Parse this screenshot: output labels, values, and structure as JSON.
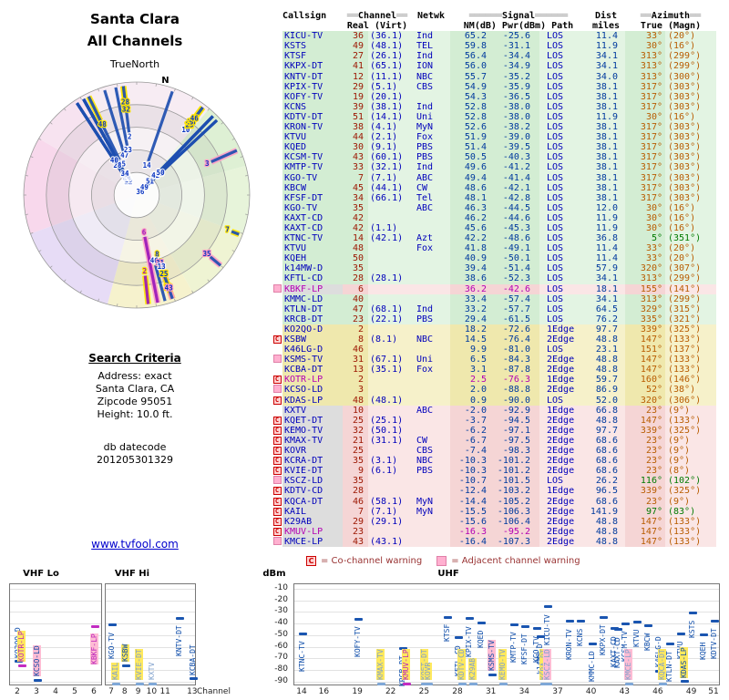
{
  "left": {
    "title1": "Santa Clara",
    "title2": "All Channels",
    "truenorth": "TrueNorth",
    "search_heading": "Search Criteria",
    "search_lines": [
      "Address: exact",
      "Santa Clara, CA",
      "Zipcode 95051",
      "Height: 10.0 ft."
    ],
    "db_label": "db datecode",
    "db_value": "201205301329",
    "link": "www.tvfool.com"
  },
  "header": {
    "callsign": "Callsign",
    "channel_group": {
      "pre": "══",
      "label": "Channel",
      "post": "══"
    },
    "netwk": "Netwk",
    "signal_group": {
      "pre": "══════",
      "label": "Signal",
      "post": "══════"
    },
    "dist": "Dist",
    "azimuth_group": {
      "pre": "══",
      "label": "Azimuth",
      "post": "══"
    },
    "sub": {
      "channel": "Real (Virt)",
      "signal": "NM(dB) Pwr(dBm) Path",
      "dist": "miles",
      "azimuth": "True (Magn)"
    }
  },
  "legend": {
    "c_badge": "C",
    "co_text": "= Co-channel warning",
    "adj_text": "= Adjacent channel warning"
  },
  "plot": {
    "vhf_lo": "VHF Lo",
    "vhf_hi": "VHF Hi",
    "uhf": "UHF",
    "dbm": "dBm",
    "channel_label": "Channel",
    "dbm_labels": [
      "-10",
      "-20",
      "-30",
      "-40",
      "-50",
      "-60",
      "-70",
      "-80",
      "-90"
    ],
    "ticks_lo": [
      "2",
      "3",
      "4",
      "5",
      "6"
    ],
    "ticks_hi": [
      "7",
      "8",
      "9",
      "10",
      "11",
      "13"
    ],
    "ticks_uhf": [
      "14",
      "16",
      "19",
      "22",
      "25",
      "28",
      "31",
      "34",
      "37",
      "40",
      "43",
      "46",
      "49",
      "51"
    ]
  },
  "chart_data": {
    "type": "table",
    "title": "Santa Clara All Channels",
    "columns": [
      "Callsign",
      "Real channel",
      "(Virtual channel)",
      "Netwk",
      "NM(dB)",
      "Pwr(dBm)",
      "Path",
      "Dist miles",
      "Azimuth True",
      "Azimuth (Magn)",
      "warning_flags",
      "tier"
    ],
    "radar": {
      "type": "radar",
      "north_label": "N",
      "declination_deg": 14,
      "rings": 5,
      "radial": "signal strength (longer pointer toward center = stronger)",
      "sectors": [
        {
          "from": 330,
          "to": 40,
          "color": "#f7ecf3"
        },
        {
          "from": 40,
          "to": 75,
          "color": "#def0d4"
        },
        {
          "from": 75,
          "to": 110,
          "color": "#e7f4da"
        },
        {
          "from": 110,
          "to": 150,
          "color": "#eff4d3"
        },
        {
          "from": 150,
          "to": 195,
          "color": "#f6f2cd"
        },
        {
          "from": 195,
          "to": 250,
          "color": "#e7dcf6"
        },
        {
          "from": 250,
          "to": 300,
          "color": "#f8d8ec"
        },
        {
          "from": 300,
          "to": 330,
          "color": "#f7e3f0"
        }
      ]
    },
    "signal_plot": {
      "type": "scatter",
      "x_axis": "RF channel",
      "y_axis": "Pwr (dBm)",
      "y_range": [
        -110,
        0
      ],
      "panels": [
        "VHF Lo",
        "VHF Hi",
        "UHF"
      ]
    },
    "rows": [
      [
        "KICU-TV",
        "36",
        "(36.1)",
        "Ind",
        "65.2",
        "-25.6",
        "LOS",
        "11.4",
        "33°",
        "(20°)",
        "",
        "g"
      ],
      [
        "KSTS",
        "49",
        "(48.1)",
        "TEL",
        "59.8",
        "-31.1",
        "LOS",
        "11.9",
        "30°",
        "(16°)",
        "",
        "g"
      ],
      [
        "KTSF",
        "27",
        "(26.1)",
        "Ind",
        "56.4",
        "-34.4",
        "LOS",
        "34.1",
        "313°",
        "(299°)",
        "",
        "g"
      ],
      [
        "KKPX-DT",
        "41",
        "(65.1)",
        "ION",
        "56.0",
        "-34.9",
        "LOS",
        "34.1",
        "313°",
        "(299°)",
        "",
        "g"
      ],
      [
        "KNTV-DT",
        "12",
        "(11.1)",
        "NBC",
        "55.7",
        "-35.2",
        "LOS",
        "34.0",
        "313°",
        "(300°)",
        "",
        "g"
      ],
      [
        "KPIX-TV",
        "29",
        "(5.1)",
        "CBS",
        "54.9",
        "-35.9",
        "LOS",
        "38.1",
        "317°",
        "(303°)",
        "",
        "g"
      ],
      [
        "KOFY-TV",
        "19",
        "(20.1)",
        "",
        "54.3",
        "-36.5",
        "LOS",
        "38.1",
        "317°",
        "(303°)",
        "",
        "g"
      ],
      [
        "KCNS",
        "39",
        "(38.1)",
        "Ind",
        "52.8",
        "-38.0",
        "LOS",
        "38.1",
        "317°",
        "(303°)",
        "",
        "g"
      ],
      [
        "KDTV-DT",
        "51",
        "(14.1)",
        "Uni",
        "52.8",
        "-38.0",
        "LOS",
        "11.9",
        "30°",
        "(16°)",
        "",
        "g"
      ],
      [
        "KRON-TV",
        "38",
        "(4.1)",
        "MyN",
        "52.6",
        "-38.2",
        "LOS",
        "38.1",
        "317°",
        "(303°)",
        "",
        "g"
      ],
      [
        "KTVU",
        "44",
        "(2.1)",
        "Fox",
        "51.9",
        "-39.0",
        "LOS",
        "38.1",
        "317°",
        "(303°)",
        "",
        "g"
      ],
      [
        "KQED",
        "30",
        "(9.1)",
        "PBS",
        "51.4",
        "-39.5",
        "LOS",
        "38.1",
        "317°",
        "(303°)",
        "",
        "g"
      ],
      [
        "KCSM-TV",
        "43",
        "(60.1)",
        "PBS",
        "50.5",
        "-40.3",
        "LOS",
        "38.1",
        "317°",
        "(303°)",
        "",
        "g"
      ],
      [
        "KMTP-TV",
        "33",
        "(32.1)",
        "Ind",
        "49.6",
        "-41.2",
        "LOS",
        "38.1",
        "317°",
        "(303°)",
        "",
        "g"
      ],
      [
        "KGO-TV",
        "7",
        "(7.1)",
        "ABC",
        "49.4",
        "-41.4",
        "LOS",
        "38.1",
        "317°",
        "(303°)",
        "",
        "g"
      ],
      [
        "KBCW",
        "45",
        "(44.1)",
        "CW",
        "48.6",
        "-42.1",
        "LOS",
        "38.1",
        "317°",
        "(303°)",
        "",
        "g"
      ],
      [
        "KFSF-DT",
        "34",
        "(66.1)",
        "Tel",
        "48.1",
        "-42.8",
        "LOS",
        "38.1",
        "317°",
        "(303°)",
        "",
        "g"
      ],
      [
        "KGO-TV",
        "35",
        "",
        "ABC",
        "46.3",
        "-44.5",
        "LOS",
        "12.0",
        "30°",
        "(16°)",
        "",
        "g"
      ],
      [
        "KAXT-CD",
        "42",
        "",
        "",
        "46.2",
        "-44.6",
        "LOS",
        "11.9",
        "30°",
        "(16°)",
        "",
        "g"
      ],
      [
        "KAXT-CD",
        "42",
        "(1.1)",
        "",
        "45.6",
        "-45.3",
        "LOS",
        "11.9",
        "30°",
        "(16°)",
        "",
        "g"
      ],
      [
        "KTNC-TV",
        "14",
        "(42.1)",
        "Azt",
        "42.2",
        "-48.6",
        "LOS",
        "36.8",
        "5°",
        "(351°)",
        "g",
        "g"
      ],
      [
        "KTVU",
        "48",
        "",
        "Fox",
        "41.8",
        "-49.1",
        "LOS",
        "11.4",
        "33°",
        "(20°)",
        "",
        "g"
      ],
      [
        "KQEH",
        "50",
        "",
        "",
        "40.9",
        "-50.1",
        "LOS",
        "11.4",
        "33°",
        "(20°)",
        "",
        "g"
      ],
      [
        "k14MW-D",
        "35",
        "",
        "",
        "39.4",
        "-51.4",
        "LOS",
        "57.9",
        "320°",
        "(307°)",
        "",
        "g"
      ],
      [
        "KFTL-CD",
        "28",
        "(28.1)",
        "",
        "38.6",
        "-52.3",
        "LOS",
        "34.1",
        "313°",
        "(299°)",
        "",
        "g"
      ],
      [
        "KBKF-LP",
        "6",
        "",
        "",
        "36.2",
        "-42.6",
        "LOS",
        "18.1",
        "155°",
        "(141°)",
        "Aa",
        "p"
      ],
      [
        "KMMC-LD",
        "40",
        "",
        "",
        "33.4",
        "-57.4",
        "LOS",
        "34.1",
        "313°",
        "(299°)",
        "",
        "g"
      ],
      [
        "KTLN-DT",
        "47",
        "(68.1)",
        "Ind",
        "33.2",
        "-57.7",
        "LOS",
        "64.5",
        "329°",
        "(315°)",
        "",
        "g"
      ],
      [
        "KRCB-DT",
        "23",
        "(22.1)",
        "PBS",
        "29.4",
        "-61.5",
        "LOS",
        "76.2",
        "335°",
        "(321°)",
        "",
        "g"
      ],
      [
        "KO2QO-D",
        "2",
        "",
        "",
        "18.2",
        "-72.6",
        "1Edge",
        "97.7",
        "339°",
        "(325°)",
        "",
        "y"
      ],
      [
        "KSBW",
        "8",
        "(8.1)",
        "NBC",
        "14.5",
        "-76.4",
        "2Edge",
        "48.8",
        "147°",
        "(133°)",
        "C",
        "y"
      ],
      [
        "K46LG-D",
        "46",
        "",
        "",
        "9.9",
        "-81.0",
        "LOS",
        "23.1",
        "151°",
        "(137°)",
        "",
        "y"
      ],
      [
        "KSMS-TV",
        "31",
        "(67.1)",
        "Uni",
        "6.5",
        "-84.3",
        "2Edge",
        "48.8",
        "147°",
        "(133°)",
        "A",
        "y"
      ],
      [
        "KCBA-DT",
        "13",
        "(35.1)",
        "Fox",
        "3.1",
        "-87.8",
        "2Edge",
        "48.8",
        "147°",
        "(133°)",
        "",
        "y"
      ],
      [
        "KOTR-LP",
        "2",
        "",
        "",
        "2.5",
        "-76.3",
        "1Edge",
        "59.7",
        "160°",
        "(146°)",
        "Ca",
        "y"
      ],
      [
        "KCSO-LD",
        "3",
        "",
        "",
        "2.0",
        "-88.8",
        "2Edge",
        "86.9",
        "52°",
        "(38°)",
        "A",
        "y"
      ],
      [
        "KDAS-LP",
        "48",
        "(48.1)",
        "",
        "0.9",
        "-90.0",
        "LOS",
        "52.0",
        "320°",
        "(306°)",
        "C",
        "y"
      ],
      [
        "KXTV",
        "10",
        "",
        "ABC",
        "-2.0",
        "-92.9",
        "1Edge",
        "66.8",
        "23°",
        "(9°)",
        "",
        "p"
      ],
      [
        "KQET-DT",
        "25",
        "(25.1)",
        "",
        "-3.7",
        "-94.5",
        "2Edge",
        "48.8",
        "147°",
        "(133°)",
        "C",
        "p"
      ],
      [
        "KEMO-TV",
        "32",
        "(50.1)",
        "",
        "-6.2",
        "-97.1",
        "2Edge",
        "97.7",
        "339°",
        "(325°)",
        "C",
        "p"
      ],
      [
        "KMAX-TV",
        "21",
        "(31.1)",
        "CW",
        "-6.7",
        "-97.5",
        "2Edge",
        "68.6",
        "23°",
        "(9°)",
        "C",
        "p"
      ],
      [
        "KOVR",
        "25",
        "",
        "CBS",
        "-7.4",
        "-98.3",
        "2Edge",
        "68.6",
        "23°",
        "(9°)",
        "C",
        "p"
      ],
      [
        "KCRA-DT",
        "35",
        "(3.1)",
        "NBC",
        "-10.3",
        "-101.2",
        "2Edge",
        "68.6",
        "23°",
        "(9°)",
        "C",
        "p"
      ],
      [
        "KVIE-DT",
        "9",
        "(6.1)",
        "PBS",
        "-10.3",
        "-101.2",
        "2Edge",
        "68.6",
        "23°",
        "(8°)",
        "C",
        "p"
      ],
      [
        "KSCZ-LD",
        "35",
        "",
        "",
        "-10.7",
        "-101.5",
        "LOS",
        "26.2",
        "116°",
        "(102°)",
        "Ag",
        "p"
      ],
      [
        "KDTV-CD",
        "28",
        "",
        "",
        "-12.4",
        "-103.2",
        "1Edge",
        "96.5",
        "339°",
        "(325°)",
        "C",
        "p"
      ],
      [
        "KQCA-DT",
        "46",
        "(58.1)",
        "MyN",
        "-14.4",
        "-105.2",
        "2Edge",
        "68.6",
        "23°",
        "(9°)",
        "C",
        "p"
      ],
      [
        "KAIL",
        "7",
        "(7.1)",
        "MyN",
        "-15.5",
        "-106.3",
        "2Edge",
        "141.9",
        "97°",
        "(83°)",
        "Cg",
        "p"
      ],
      [
        "K29AB",
        "29",
        "(29.1)",
        "",
        "-15.6",
        "-106.4",
        "2Edge",
        "48.8",
        "147°",
        "(133°)",
        "C",
        "p"
      ],
      [
        "KMUV-LP",
        "23",
        "",
        "",
        "-16.3",
        "-95.2",
        "2Edge",
        "48.8",
        "147°",
        "(133°)",
        "Ca",
        "p"
      ],
      [
        "KMCE-LP",
        "43",
        "(43.1)",
        "",
        "-16.4",
        "-107.3",
        "2Edge",
        "48.8",
        "147°",
        "(133°)",
        "A",
        "p"
      ]
    ]
  }
}
